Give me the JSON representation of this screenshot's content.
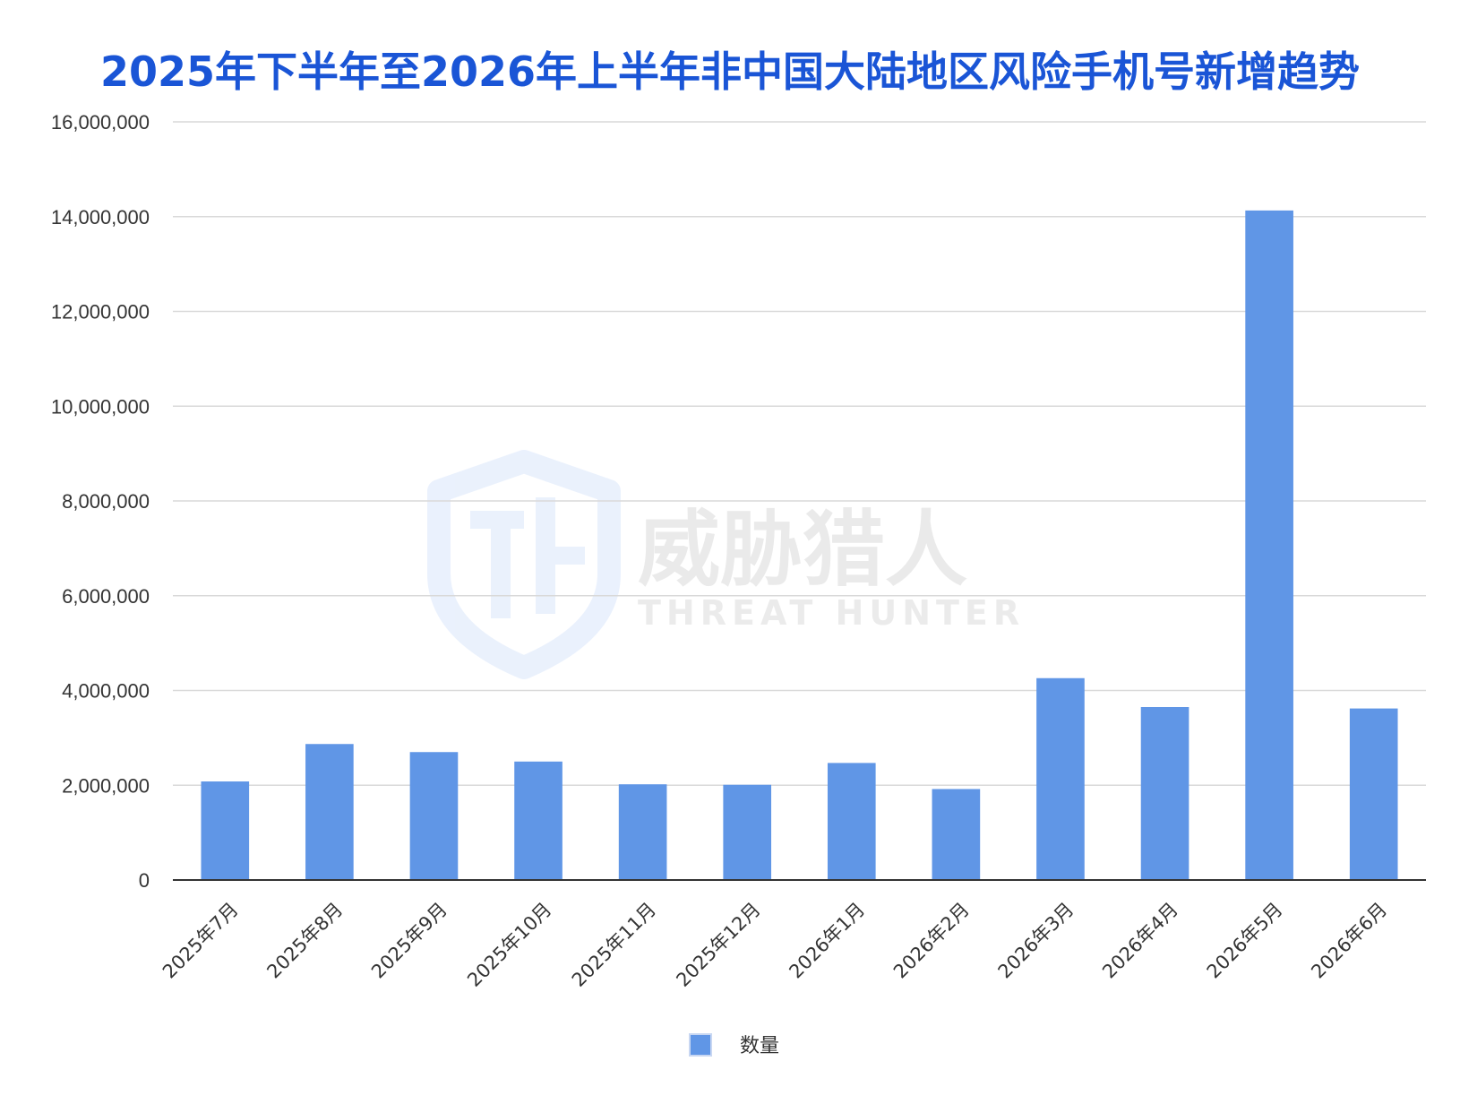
{
  "watermark": {
    "brand_cn": "威胁猎人",
    "brand_en": "THREAT HUNTER",
    "logo_icon": "shield-th-logo-icon"
  },
  "colors": {
    "title": "#1a55d6",
    "bar": "#6096e6",
    "grid": "#d9d9d9",
    "axis": "#333333"
  },
  "chart_data": {
    "type": "bar",
    "title": "2025年下半年至2026年上半年非中国大陆地区风险手机号新增趋势",
    "xlabel": "",
    "ylabel": "",
    "categories": [
      "2025年7月",
      "2025年8月",
      "2025年9月",
      "2025年10月",
      "2025年11月",
      "2025年12月",
      "2026年1月",
      "2026年2月",
      "2026年3月",
      "2026年4月",
      "2026年5月",
      "2026年6月"
    ],
    "series": [
      {
        "name": "数量",
        "values": [
          2080000,
          2870000,
          2700000,
          2500000,
          2020000,
          2010000,
          2470000,
          1920000,
          4260000,
          3650000,
          14130000,
          3620000
        ]
      }
    ],
    "ylim": [
      0,
      16000000
    ],
    "yticks": [
      0,
      2000000,
      4000000,
      6000000,
      8000000,
      10000000,
      12000000,
      14000000,
      16000000
    ],
    "ytick_labels": [
      "0",
      "2,000,000",
      "4,000,000",
      "6,000,000",
      "8,000,000",
      "10,000,000",
      "12,000,000",
      "14,000,000",
      "16,000,000"
    ],
    "grid": true,
    "legend": "bottom-center"
  }
}
